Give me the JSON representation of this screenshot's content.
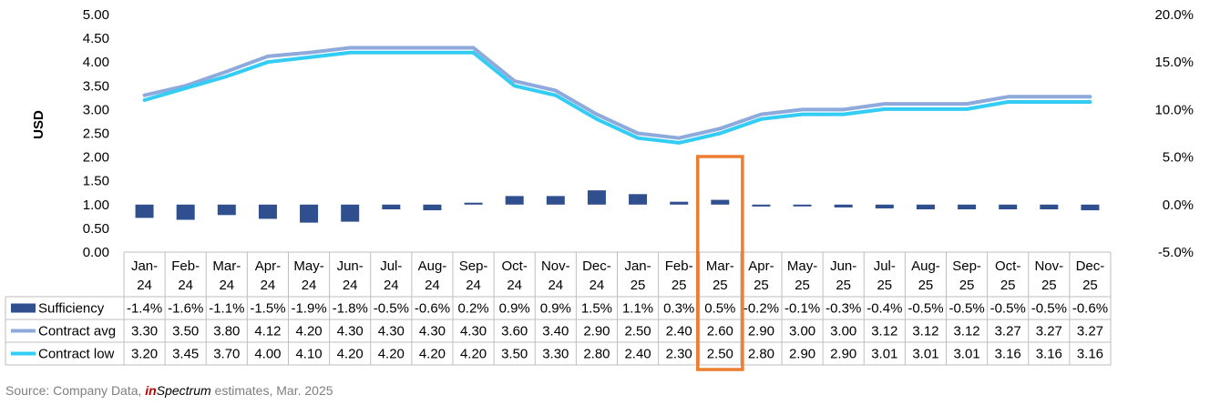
{
  "chart_data": {
    "type": "bar+line",
    "categories": [
      "Jan-24",
      "Feb-24",
      "Mar-24",
      "Apr-24",
      "May-24",
      "Jun-24",
      "Jul-24",
      "Aug-24",
      "Sep-24",
      "Oct-24",
      "Nov-24",
      "Dec-24",
      "Jan-25",
      "Feb-25",
      "Mar-25",
      "Apr-25",
      "May-25",
      "Jun-25",
      "Jul-25",
      "Aug-25",
      "Sep-25",
      "Oct-25",
      "Nov-25",
      "Dec-25"
    ],
    "ylabel": "USD",
    "left_axis": {
      "ticks": [
        "0.00",
        "0.50",
        "1.00",
        "1.50",
        "2.00",
        "2.50",
        "3.00",
        "3.50",
        "4.00",
        "4.50",
        "5.00"
      ],
      "min": 0,
      "max": 5
    },
    "right_axis": {
      "ticks": [
        "-5.0%",
        "0.0%",
        "5.0%",
        "10.0%",
        "15.0%",
        "20.0%"
      ],
      "min": -5,
      "max": 20
    },
    "highlight_category": "Mar-25",
    "series": [
      {
        "name": "Sufficiency",
        "type": "bar",
        "axis": "right",
        "unit": "%",
        "color": "#2f4f8f",
        "values": [
          -1.4,
          -1.6,
          -1.1,
          -1.5,
          -1.9,
          -1.8,
          -0.5,
          -0.6,
          0.2,
          0.9,
          0.9,
          1.5,
          1.1,
          0.3,
          0.5,
          -0.2,
          -0.1,
          -0.3,
          -0.4,
          -0.5,
          -0.5,
          -0.5,
          -0.5,
          -0.6
        ],
        "labels": [
          "-1.4%",
          "-1.6%",
          "-1.1%",
          "-1.5%",
          "-1.9%",
          "-1.8%",
          "-0.5%",
          "-0.6%",
          "0.2%",
          "0.9%",
          "0.9%",
          "1.5%",
          "1.1%",
          "0.3%",
          "0.5%",
          "-0.2%",
          "-0.1%",
          "-0.3%",
          "-0.4%",
          "-0.5%",
          "-0.5%",
          "-0.5%",
          "-0.5%",
          "-0.6%"
        ]
      },
      {
        "name": "Contract avg",
        "type": "line",
        "axis": "left",
        "color": "#8ea9db",
        "values": [
          3.3,
          3.5,
          3.8,
          4.12,
          4.2,
          4.3,
          4.3,
          4.3,
          4.3,
          3.6,
          3.4,
          2.9,
          2.5,
          2.4,
          2.6,
          2.9,
          3.0,
          3.0,
          3.12,
          3.12,
          3.12,
          3.27,
          3.27,
          3.27
        ],
        "labels": [
          "3.30",
          "3.50",
          "3.80",
          "4.12",
          "4.20",
          "4.30",
          "4.30",
          "4.30",
          "4.30",
          "3.60",
          "3.40",
          "2.90",
          "2.50",
          "2.40",
          "2.60",
          "2.90",
          "3.00",
          "3.00",
          "3.12",
          "3.12",
          "3.12",
          "3.27",
          "3.27",
          "3.27"
        ]
      },
      {
        "name": "Contract low",
        "type": "line",
        "axis": "left",
        "color": "#33ccf5",
        "values": [
          3.2,
          3.45,
          3.7,
          4.0,
          4.1,
          4.2,
          4.2,
          4.2,
          4.2,
          3.5,
          3.3,
          2.8,
          2.4,
          2.3,
          2.5,
          2.8,
          2.9,
          2.9,
          3.01,
          3.01,
          3.01,
          3.16,
          3.16,
          3.16
        ],
        "labels": [
          "3.20",
          "3.45",
          "3.70",
          "4.00",
          "4.10",
          "4.20",
          "4.20",
          "4.20",
          "4.20",
          "3.50",
          "3.30",
          "2.80",
          "2.40",
          "2.30",
          "2.50",
          "2.80",
          "2.90",
          "2.90",
          "3.01",
          "3.01",
          "3.01",
          "3.16",
          "3.16",
          "3.16"
        ]
      }
    ],
    "highlight_color": "#ed7d31"
  },
  "source": {
    "prefix": "Source: Company Data, ",
    "brand_a": "in",
    "brand_b": "Spectrum",
    "suffix": " estimates, Mar. 2025"
  }
}
